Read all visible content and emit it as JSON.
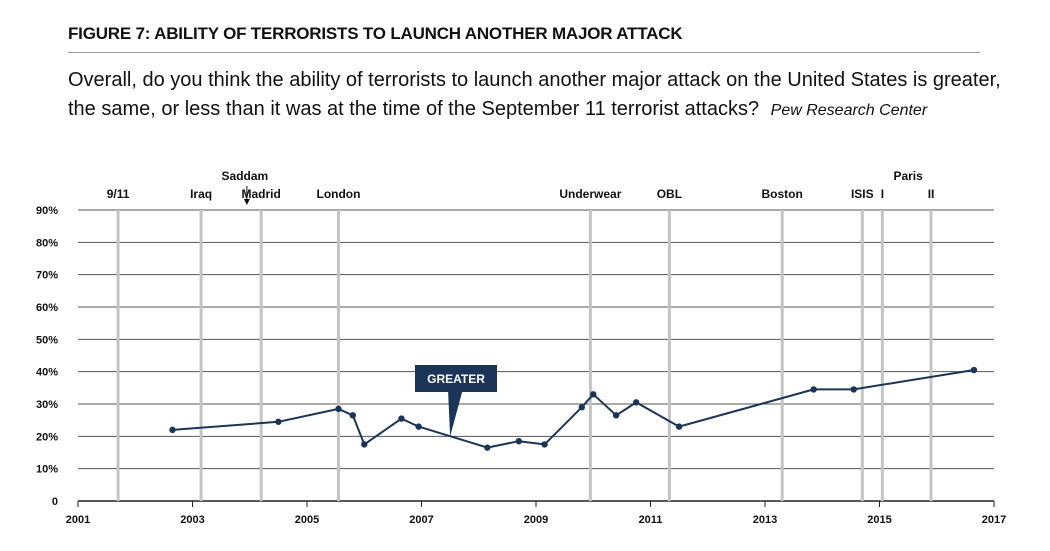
{
  "header": {
    "figure_title": "FIGURE 7: ABILITY OF TERRORISTS TO LAUNCH ANOTHER MAJOR ATTACK",
    "question": "Overall, do you think the ability of terrorists to launch another major attack on the United States is greater, the same, or less than it was at the time of the September 11 terrorist attacks?",
    "source": "Pew Research Center"
  },
  "colors": {
    "series": "#1b3558",
    "gridline": "#555555",
    "event_line": "#c4c4c4",
    "callout_bg": "#1b3558",
    "callout_text": "#ffffff"
  },
  "chart_data": {
    "type": "line",
    "title": "FIGURE 7: ABILITY OF TERRORISTS TO LAUNCH ANOTHER MAJOR ATTACK",
    "xlabel": "",
    "ylabel": "",
    "xlim": [
      2001,
      2017
    ],
    "ylim": [
      0,
      90
    ],
    "x_ticks": [
      2001,
      2003,
      2005,
      2007,
      2009,
      2011,
      2013,
      2015,
      2017
    ],
    "x_tick_labels": [
      "2001",
      "2003",
      "2005",
      "2007",
      "2009",
      "2011",
      "2013",
      "2015",
      "2017"
    ],
    "y_ticks": [
      0,
      10,
      20,
      30,
      40,
      50,
      60,
      70,
      80,
      90
    ],
    "y_tick_labels": [
      "0",
      "10%",
      "20%",
      "30%",
      "40%",
      "50%",
      "60%",
      "70%",
      "80%",
      "90%"
    ],
    "grid": true,
    "series": [
      {
        "name": "GREATER",
        "x": [
          2002.65,
          2004.5,
          2005.55,
          2005.8,
          2006.0,
          2006.65,
          2006.95,
          2008.15,
          2008.7,
          2009.15,
          2009.8,
          2010.0,
          2010.4,
          2010.75,
          2011.5,
          2013.85,
          2014.55,
          2016.65
        ],
        "values": [
          22,
          24.5,
          28.5,
          26.5,
          17.5,
          25.5,
          23,
          16.5,
          18.5,
          17.5,
          29,
          33,
          26.5,
          30.5,
          23,
          34.5,
          34.5,
          40.5
        ],
        "markers": [
          true,
          true,
          true,
          true,
          true,
          true,
          true,
          true,
          true,
          true,
          true,
          true,
          true,
          true,
          true,
          true,
          true,
          true
        ]
      }
    ],
    "callout": {
      "text": "GREATER",
      "x": 2007.5,
      "y": 20
    },
    "events": [
      {
        "label": "9/11",
        "x": 2001.7,
        "level": 1
      },
      {
        "label": "Iraq",
        "x": 2003.15,
        "level": 1
      },
      {
        "label": "Saddam",
        "x": 2003.95,
        "level": 2,
        "arrow": true
      },
      {
        "label": "Madrid",
        "x": 2004.2,
        "level": 1
      },
      {
        "label": "London",
        "x": 2005.55,
        "level": 1
      },
      {
        "label": "Underwear",
        "x": 2009.95,
        "level": 1
      },
      {
        "label": "OBL",
        "x": 2011.33,
        "level": 1
      },
      {
        "label": "Boston",
        "x": 2013.3,
        "level": 1
      },
      {
        "label": "ISIS",
        "x": 2014.7,
        "level": 1
      },
      {
        "label": "I",
        "x": 2015.05,
        "level": 1
      },
      {
        "label": "Paris",
        "x": 2015.5,
        "level": 2
      },
      {
        "label": "II",
        "x": 2015.9,
        "level": 1
      }
    ]
  }
}
